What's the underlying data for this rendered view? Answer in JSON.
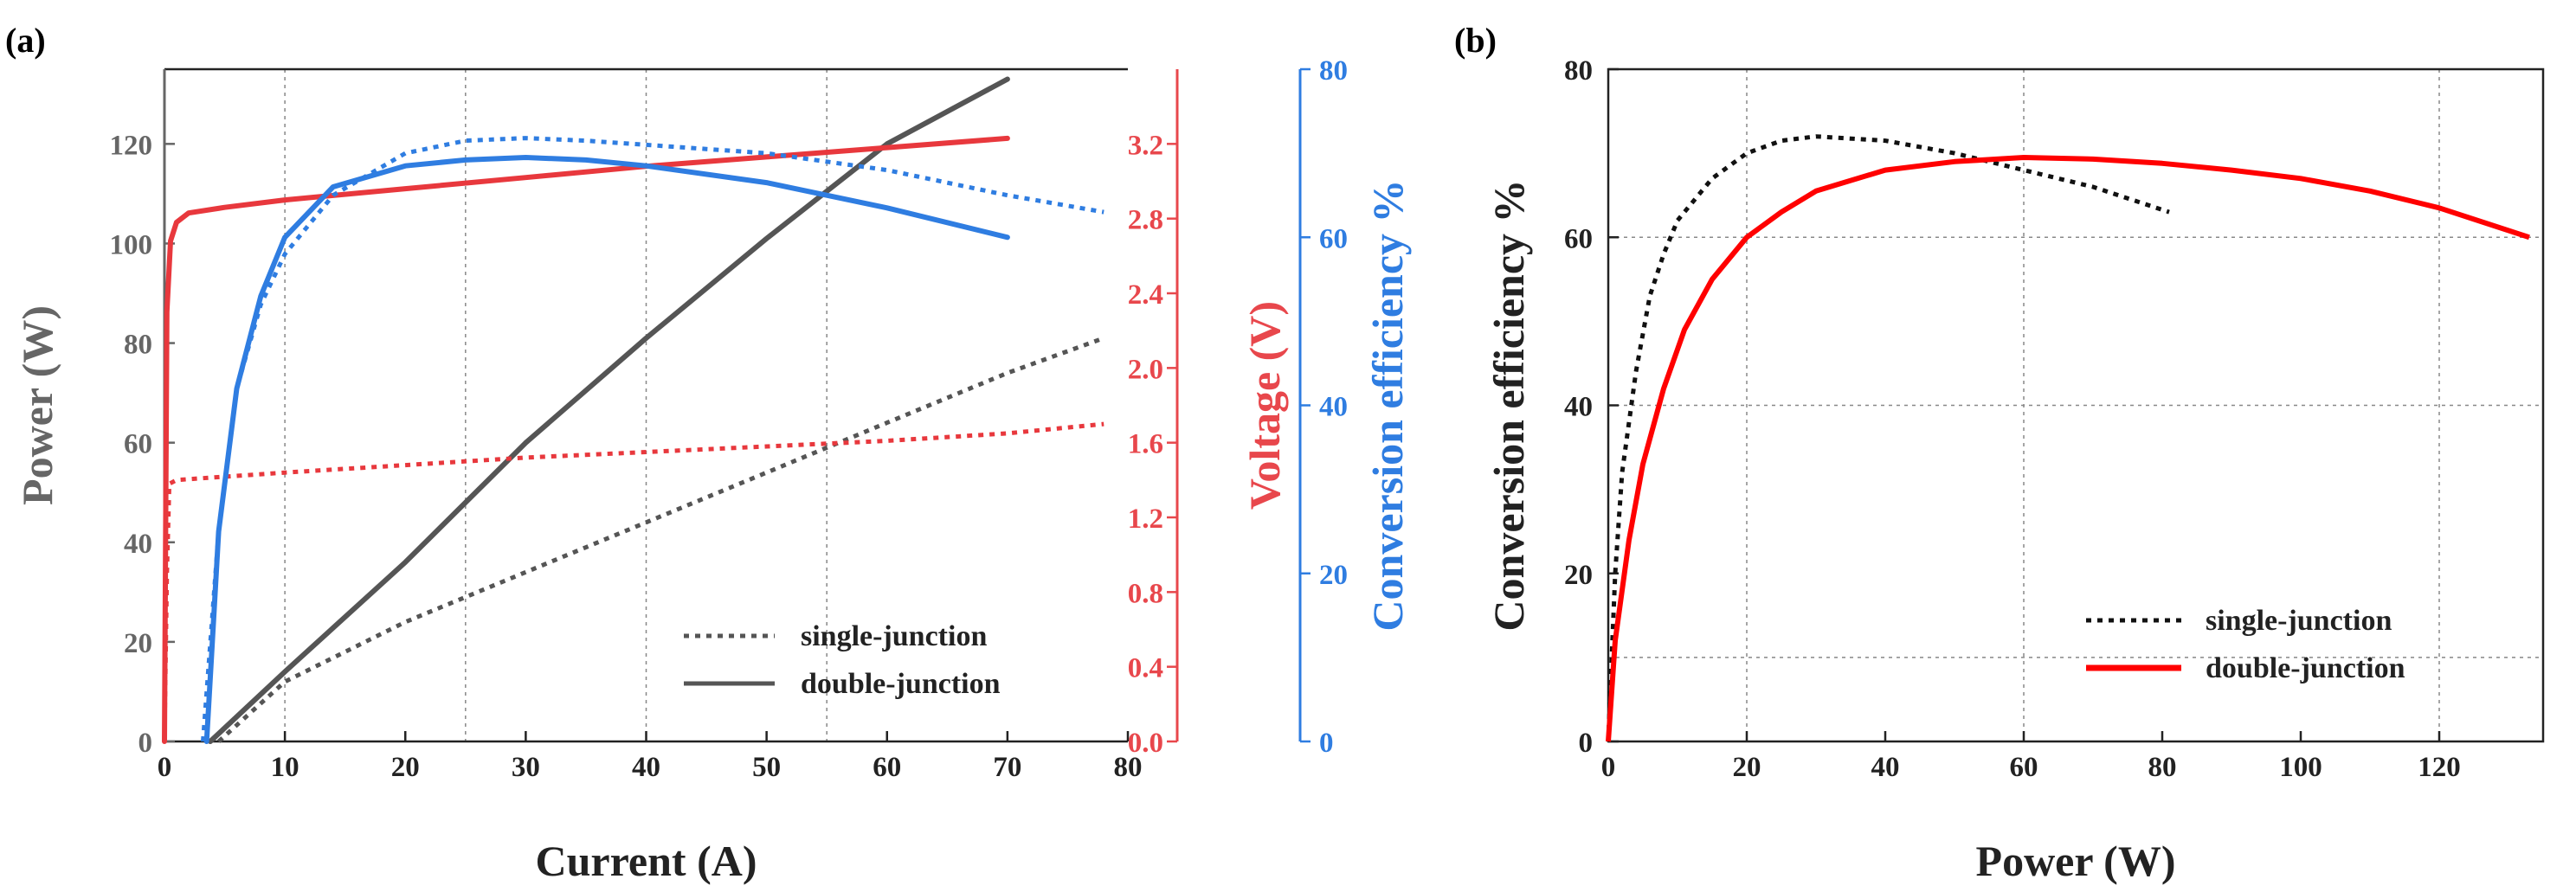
{
  "colors": {
    "power": "#555555",
    "voltage": "#e8383d",
    "efficiency": "#2f7de1",
    "powerAxis": "#666666",
    "voltageAxis": "#e8474c",
    "efficiencyAxis": "#2f7de1",
    "black": "#111111",
    "red": "#ff0000"
  },
  "chart_data": [
    {
      "type": "line",
      "panel": "(a)",
      "xlabel": "Current (A)",
      "xlim": [
        0,
        80
      ],
      "xticks": [
        0,
        10,
        20,
        30,
        40,
        50,
        60,
        70,
        80
      ],
      "grid_x": [
        10,
        25,
        40,
        55
      ],
      "axes": {
        "left": {
          "label": "Power (W)",
          "lim": [
            0,
            135
          ],
          "ticks": [
            0,
            20,
            40,
            60,
            80,
            100,
            120
          ]
        },
        "right1": {
          "label": "Voltage (V)",
          "lim": [
            0,
            3.6
          ],
          "ticks": [
            "0.0",
            "0.4",
            "0.8",
            "1.2",
            "1.6",
            "2.0",
            "2.4",
            "2.8",
            "3.2"
          ]
        },
        "right2": {
          "label": "Conversion efficiency %",
          "lim": [
            0,
            80
          ],
          "ticks": [
            0,
            20,
            40,
            60,
            80
          ]
        }
      },
      "legend": {
        "position": "bottom-right",
        "entries": [
          {
            "label": "single-junction",
            "style": "dotted"
          },
          {
            "label": "double-junction",
            "style": "solid"
          }
        ]
      },
      "series": [
        {
          "name": "Power single-junction",
          "axis": "left",
          "style": "dotted",
          "color": "power",
          "x": [
            4.5,
            10,
            20,
            30,
            40,
            50,
            60,
            70,
            78
          ],
          "y": [
            0,
            12,
            24,
            34,
            44,
            54,
            64,
            74,
            81
          ]
        },
        {
          "name": "Power double-junction",
          "axis": "left",
          "style": "solid",
          "color": "power",
          "x": [
            3.8,
            10,
            20,
            30,
            40,
            50,
            60,
            70
          ],
          "y": [
            0,
            14,
            36,
            60,
            81,
            101,
            120,
            133
          ]
        },
        {
          "name": "Voltage single-junction",
          "axis": "right1",
          "style": "dotted",
          "color": "voltage",
          "x": [
            0,
            0.2,
            0.4,
            1,
            10,
            20,
            30,
            40,
            50,
            60,
            70,
            78
          ],
          "y": [
            0,
            0.9,
            1.38,
            1.4,
            1.44,
            1.48,
            1.52,
            1.55,
            1.58,
            1.61,
            1.65,
            1.7
          ]
        },
        {
          "name": "Voltage double-junction",
          "axis": "right1",
          "style": "solid",
          "color": "voltage",
          "x": [
            0,
            0.2,
            0.5,
            1,
            2,
            5,
            10,
            20,
            30,
            40,
            50,
            60,
            70
          ],
          "y": [
            0,
            2.3,
            2.68,
            2.78,
            2.83,
            2.86,
            2.9,
            2.96,
            3.02,
            3.08,
            3.13,
            3.18,
            3.23
          ]
        },
        {
          "name": "Efficiency single-junction",
          "axis": "right2",
          "style": "dotted",
          "color": "efficiency",
          "x": [
            3.2,
            4.5,
            6,
            8,
            10,
            14,
            20,
            25,
            30,
            35,
            40,
            50,
            60,
            70,
            78
          ],
          "y": [
            0,
            25,
            42,
            52,
            58,
            65,
            70,
            71.5,
            71.8,
            71.5,
            71,
            70,
            68,
            65,
            63
          ]
        },
        {
          "name": "Efficiency double-junction",
          "axis": "right2",
          "style": "solid",
          "color": "efficiency",
          "x": [
            3.5,
            4.5,
            6,
            8,
            10,
            14,
            20,
            25,
            30,
            35,
            40,
            50,
            60,
            70
          ],
          "y": [
            0,
            25,
            42,
            53,
            60,
            66,
            68.5,
            69.2,
            69.5,
            69.2,
            68.5,
            66.5,
            63.5,
            60
          ]
        }
      ]
    },
    {
      "type": "line",
      "panel": "(b)",
      "xlabel": "Power (W)",
      "ylabel": "Conversion efficiency %",
      "xlim": [
        0,
        135
      ],
      "ylim": [
        0,
        80
      ],
      "xticks": [
        0,
        20,
        40,
        60,
        80,
        100,
        120
      ],
      "yticks": [
        0,
        20,
        40,
        60,
        80
      ],
      "grid_x": [
        20,
        60,
        120
      ],
      "grid_y": [
        10,
        40,
        60
      ],
      "legend": {
        "position": "bottom-right",
        "entries": [
          {
            "label": "single-junction",
            "style": "dotted",
            "color": "black"
          },
          {
            "label": "double-junction",
            "style": "solid",
            "color": "red"
          }
        ]
      },
      "series": [
        {
          "name": "single-junction",
          "style": "dotted",
          "color": "black",
          "x": [
            0,
            1,
            2,
            4,
            6,
            8,
            10,
            15,
            20,
            25,
            30,
            40,
            50,
            60,
            70,
            81
          ],
          "y": [
            0,
            20,
            32,
            44,
            53,
            58,
            62,
            67,
            70,
            71.5,
            72,
            71.5,
            70,
            68,
            66,
            63
          ]
        },
        {
          "name": "double-junction",
          "style": "solid",
          "color": "red",
          "x": [
            0,
            1,
            3,
            5,
            8,
            11,
            15,
            20,
            25,
            30,
            40,
            50,
            60,
            70,
            80,
            90,
            100,
            110,
            120,
            133
          ],
          "y": [
            0,
            12,
            24,
            33,
            42,
            49,
            55,
            60,
            63,
            65.5,
            68,
            69,
            69.5,
            69.3,
            68.8,
            68,
            67,
            65.5,
            63.5,
            60
          ]
        }
      ]
    }
  ]
}
